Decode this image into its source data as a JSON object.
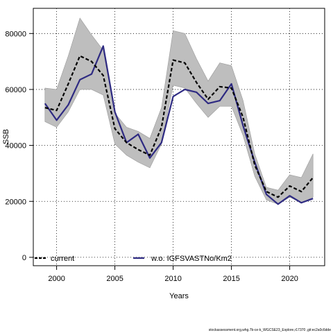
{
  "chart_data": {
    "type": "line",
    "title": "",
    "xlabel": "Years",
    "ylabel": "SSB",
    "xlim": [
      1998,
      2023
    ],
    "ylim": [
      -3000,
      89000
    ],
    "x_ticks": [
      2000,
      2005,
      2010,
      2015,
      2020
    ],
    "x_tick_labels": [
      "2000",
      "2005",
      "2010",
      "2015",
      "2020"
    ],
    "y_ticks": [
      0,
      20000,
      40000,
      60000,
      80000
    ],
    "y_tick_labels": [
      "0",
      "20000",
      "40000",
      "60000",
      "80000"
    ],
    "grid": true,
    "legend_position": "bottom",
    "x": [
      1999,
      2000,
      2001,
      2002,
      2003,
      2004,
      2005,
      2006,
      2007,
      2008,
      2009,
      2010,
      2011,
      2012,
      2013,
      2014,
      2015,
      2016,
      2017,
      2018,
      2019,
      2020,
      2021,
      2022
    ],
    "series": [
      {
        "name": "current",
        "color": "#000000",
        "style": "dashed",
        "values": [
          53500,
          52500,
          62000,
          72000,
          70000,
          65000,
          46000,
          41000,
          38500,
          36500,
          46500,
          70500,
          69500,
          62500,
          56500,
          61000,
          60500,
          50000,
          33000,
          23500,
          21500,
          25500,
          23500,
          28500
        ]
      },
      {
        "name": "w.o. IGFSVASTNo/Km2",
        "color": "#2e2a82",
        "style": "solid",
        "values": [
          55000,
          49000,
          54500,
          63500,
          65500,
          75500,
          52000,
          41000,
          44000,
          35500,
          41000,
          57500,
          60000,
          59000,
          55000,
          56000,
          62000,
          47000,
          34000,
          22500,
          19000,
          22000,
          19500,
          21000
        ]
      }
    ],
    "band": {
      "color": "#bebebe",
      "upper": [
        60500,
        60000,
        72000,
        85500,
        79500,
        74000,
        51500,
        46500,
        45000,
        42500,
        53500,
        81000,
        80000,
        71000,
        63000,
        69500,
        68500,
        56000,
        37000,
        25000,
        24000,
        29500,
        28500,
        37000
      ],
      "lower": [
        48500,
        46500,
        52000,
        60000,
        60000,
        58000,
        40500,
        36500,
        34000,
        32000,
        40500,
        61500,
        60500,
        55000,
        50000,
        54000,
        54000,
        43500,
        29000,
        20500,
        19000,
        21500,
        19500,
        21500
      ]
    }
  },
  "footer": "stockassessment.org,whg.7b-ce-k_WGCSE23_Explore,r17370 ,git:ec2a0c6dde"
}
